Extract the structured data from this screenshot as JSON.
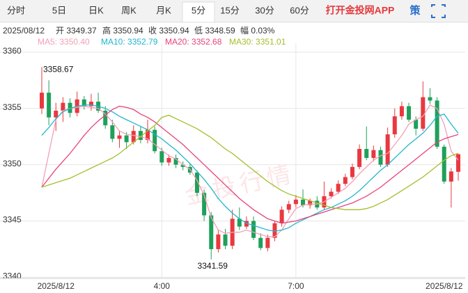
{
  "tabs": [
    "分时",
    "5日",
    "日K",
    "周K",
    "月K",
    "5分",
    "15分",
    "30分",
    "60分"
  ],
  "selected_tab": "5分",
  "app_link": "打开金投网APP",
  "strategy": "策",
  "info": {
    "date": "2025/08/12",
    "items": [
      "开 3349.37",
      "高 3350.94",
      "收 3350.94",
      "低 3348.59",
      "幅 0.03%"
    ]
  },
  "watermark": "金投行情",
  "chart_data": {
    "type": "candlestick",
    "categories": [
      null,
      null,
      "2025/8/12",
      null,
      null,
      null,
      null,
      null,
      null,
      null,
      null,
      null,
      null,
      null,
      null,
      null,
      null,
      "4:00",
      null,
      null,
      null,
      null,
      null,
      null,
      null,
      null,
      null,
      null,
      null,
      null,
      null,
      null,
      null,
      null,
      null,
      null,
      "7:00",
      null,
      null,
      null,
      null,
      null,
      null,
      null,
      null,
      null,
      null,
      null,
      null,
      null,
      null,
      null,
      null,
      null,
      null,
      null,
      null,
      "2025/8/12",
      null,
      null
    ],
    "open": [
      3355,
      3356.4,
      3354.2,
      3354.8,
      3355.5,
      3354.6,
      3355.8,
      3355.2,
      3355.6,
      3354.8,
      3353.5,
      3352.3,
      3352.6,
      3352,
      3353,
      3352.2,
      3353.1,
      3351.2,
      3350.2,
      3350.6,
      3350,
      3349.8,
      3349.3,
      3347.5,
      3345.5,
      3342.5,
      3343.8,
      3342.8,
      3345.2,
      3344.5,
      3345,
      3343.5,
      3342.6,
      3343.5,
      3344.8,
      3346,
      3346.5,
      3346.9,
      3346.4,
      3346.8,
      3346.2,
      3347.2,
      3347.6,
      3348.3,
      3348.9,
      3349.8,
      3351.4,
      3350.6,
      3351.3,
      3350,
      3352.7,
      3354.3,
      3355.2,
      3354,
      3353.2,
      3356,
      3355.7,
      3351.6,
      3348.5,
      3349.37
    ],
    "high": [
      3358.67,
      3357.5,
      3355.5,
      3356,
      3355.9,
      3356.5,
      3356.1,
      3356.3,
      3356.4,
      3355.2,
      3354,
      3353,
      3352.9,
      3353.5,
      3353.4,
      3354,
      3353.4,
      3351.5,
      3350.9,
      3350.9,
      3350.3,
      3350.1,
      3349.5,
      3347.8,
      3345.8,
      3344.2,
      3344.3,
      3346,
      3346.2,
      3345.4,
      3345.4,
      3343.9,
      3343.8,
      3345,
      3346.3,
      3346.8,
      3347.3,
      3347.8,
      3347,
      3347.2,
      3348.5,
      3347.9,
      3348.6,
      3349.2,
      3350.1,
      3351.8,
      3353.4,
      3351.7,
      3351.6,
      3353.3,
      3355,
      3355.6,
      3355.5,
      3354.3,
      3357.4,
      3356.8,
      3356,
      3351.8,
      3349.7,
      3350.94
    ],
    "low": [
      3354.5,
      3353.5,
      3353,
      3353.8,
      3354.2,
      3354.3,
      3354.9,
      3354.8,
      3354.6,
      3353.2,
      3352,
      3351.5,
      3351.4,
      3351.8,
      3351.9,
      3351.9,
      3351,
      3349.9,
      3349.9,
      3349.7,
      3349.5,
      3349.1,
      3347.2,
      3345,
      3341.59,
      3342.2,
      3342.5,
      3342.5,
      3344.2,
      3344.3,
      3343.3,
      3342.4,
      3342.3,
      3343.2,
      3344.5,
      3345.7,
      3346.2,
      3346.2,
      3346.1,
      3346,
      3346,
      3347,
      3347.4,
      3348.1,
      3348.7,
      3349.6,
      3350.4,
      3350.3,
      3349.8,
      3349.8,
      3352.4,
      3354,
      3353.8,
      3352.6,
      3353,
      3355.4,
      3351.4,
      3348.3,
      3346.2,
      3348.59
    ],
    "close": [
      3356.4,
      3354.2,
      3354.8,
      3355.5,
      3354.6,
      3355.8,
      3355.2,
      3355.6,
      3354.8,
      3353.5,
      3352.3,
      3352.6,
      3352,
      3353,
      3352.2,
      3353.1,
      3351.2,
      3350.2,
      3350.6,
      3350,
      3349.8,
      3349.3,
      3347.5,
      3345.5,
      3342.5,
      3343.8,
      3342.8,
      3345.2,
      3344.5,
      3345,
      3343.5,
      3342.6,
      3343.5,
      3344.8,
      3346,
      3346.5,
      3346.9,
      3346.4,
      3346.8,
      3346.2,
      3347.2,
      3347.6,
      3348.3,
      3348.9,
      3349.8,
      3351.4,
      3350.6,
      3351.3,
      3350,
      3352.7,
      3354.3,
      3355.2,
      3354,
      3353.2,
      3356,
      3355.7,
      3351.6,
      3348.5,
      3349.4,
      3350.94
    ],
    "up_color": "#e8393f",
    "down_color": "#1fa05a",
    "series": [
      {
        "name": "MA5",
        "legend": "MA5: 3350.40",
        "color": "#f2a0b6",
        "values": [
          3348,
          3351,
          3354,
          3354.8,
          3355,
          3355.1,
          3355.2,
          3355.1,
          3355,
          3354.5,
          3353.8,
          3353,
          3352.7,
          3352.6,
          3352.5,
          3352.3,
          3351.8,
          3351.3,
          3350.8,
          3350.5,
          3350,
          3349.6,
          3348.6,
          3347.3,
          3345.3,
          3344.2,
          3343.9,
          3344,
          3344,
          3344.2,
          3344,
          3343.8,
          3343.6,
          3343.6,
          3344.2,
          3345.2,
          3346.1,
          3346.4,
          3346.5,
          3346.5,
          3346.7,
          3347.1,
          3347.5,
          3347.9,
          3348.5,
          3349.2,
          3349.8,
          3350.4,
          3350.8,
          3351,
          3351.8,
          3352.6,
          3353.6,
          3354,
          3354.3,
          3355.3,
          3355,
          3353.6,
          3351.2,
          3350.4
        ]
      },
      {
        "name": "MA10",
        "legend": "MA10: 3352.79",
        "color": "#22b5cf",
        "values": [
          3352.6,
          3353.3,
          3354.1,
          3354.7,
          3355,
          3355.2,
          3355.3,
          3355.3,
          3355.2,
          3355,
          3354.7,
          3354.3,
          3354,
          3353.7,
          3353.4,
          3353.1,
          3352.7,
          3352.3,
          3351.8,
          3351.3,
          3350.7,
          3350.1,
          3349.4,
          3348.7,
          3347.9,
          3347,
          3346.3,
          3345.7,
          3345.2,
          3344.8,
          3344.6,
          3344.4,
          3344.2,
          3344.1,
          3344.2,
          3344.4,
          3344.8,
          3345.1,
          3345.4,
          3345.7,
          3346,
          3346.2,
          3346.5,
          3346.8,
          3347.2,
          3347.7,
          3348.3,
          3348.9,
          3349.5,
          3350,
          3350.6,
          3351.2,
          3351.8,
          3352.3,
          3352.8,
          3353.5,
          3354.3,
          3354.5,
          3353.6,
          3352.79
        ]
      },
      {
        "name": "MA20",
        "legend": "MA20: 3352.68",
        "color": "#e6437c",
        "values": [
          3348,
          3348.8,
          3349.6,
          3350.3,
          3351,
          3351.8,
          3352.6,
          3353.3,
          3353.9,
          3354.4,
          3354.9,
          3355.2,
          3355.1,
          3354.9,
          3354.5,
          3354.2,
          3353.8,
          3353.3,
          3352.8,
          3352.3,
          3351.8,
          3351.2,
          3350.6,
          3350,
          3349.4,
          3348.8,
          3348.2,
          3347.6,
          3347,
          3346.5,
          3346,
          3345.6,
          3345.2,
          3345,
          3344.8,
          3344.9,
          3345,
          3345.2,
          3345.4,
          3345.6,
          3345.8,
          3346,
          3346.2,
          3346.4,
          3346.6,
          3346.9,
          3347.2,
          3347.6,
          3348,
          3348.5,
          3349,
          3349.5,
          3350,
          3350.5,
          3351,
          3351.5,
          3352,
          3352.3,
          3352.5,
          3352.68
        ]
      },
      {
        "name": "MA30",
        "legend": "MA30: 3351.01",
        "color": "#a4be2c",
        "values": [
          3348,
          3348.2,
          3348.4,
          3348.6,
          3348.8,
          3349.1,
          3349.4,
          3349.7,
          3350,
          3350.3,
          3350.6,
          3351,
          3351.5,
          3352,
          3352.5,
          3353,
          3353.5,
          3354.2,
          3354.4,
          3354.1,
          3353.8,
          3353.5,
          3353.2,
          3352.8,
          3352.4,
          3351.9,
          3351.4,
          3351,
          3350.5,
          3350,
          3349.5,
          3349,
          3348.5,
          3348.1,
          3347.7,
          3347.4,
          3347.2,
          3347,
          3346.8,
          3346.6,
          3346.4,
          3346.2,
          3346.1,
          3346,
          3346,
          3346,
          3346.1,
          3346.3,
          3346.6,
          3346.9,
          3347.3,
          3347.7,
          3348.1,
          3348.5,
          3348.9,
          3349.4,
          3349.9,
          3350.4,
          3350.8,
          3351.01
        ]
      }
    ],
    "annotations": [
      {
        "label": "3358.67",
        "value": 3358.67
      },
      {
        "label": "3341.59",
        "value": 3341.59
      }
    ],
    "ylim": [
      3339.9,
      3360.8
    ],
    "yticks": [
      3340,
      3345,
      3350,
      3355,
      3360
    ],
    "grid": true
  }
}
